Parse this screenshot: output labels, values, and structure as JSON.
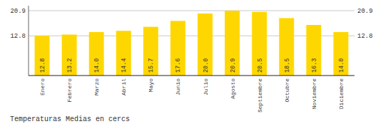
{
  "chart_data": {
    "type": "bar",
    "title": "Temperaturas Medias en cercs",
    "categories": [
      "Enero",
      "Febrero",
      "Marzo",
      "Abril",
      "Mayo",
      "Junio",
      "Julio",
      "Agosto",
      "Septiembre",
      "Octubre",
      "Noviembre",
      "Diciembre"
    ],
    "values": [
      12.8,
      13.2,
      14.0,
      14.4,
      15.7,
      17.6,
      20.0,
      20.9,
      20.5,
      18.5,
      16.3,
      14.0
    ],
    "value_labels": [
      "12.8",
      "13.2",
      "14.0",
      "14.4",
      "15.7",
      "17.6",
      "20.0",
      "20.9",
      "20.5",
      "18.5",
      "16.3",
      "14.0"
    ],
    "color": "#FFD700",
    "ylim": [
      0.0,
      22.5
    ],
    "yticks": [
      12.8,
      20.9
    ],
    "grid": true,
    "data_labels": true
  }
}
